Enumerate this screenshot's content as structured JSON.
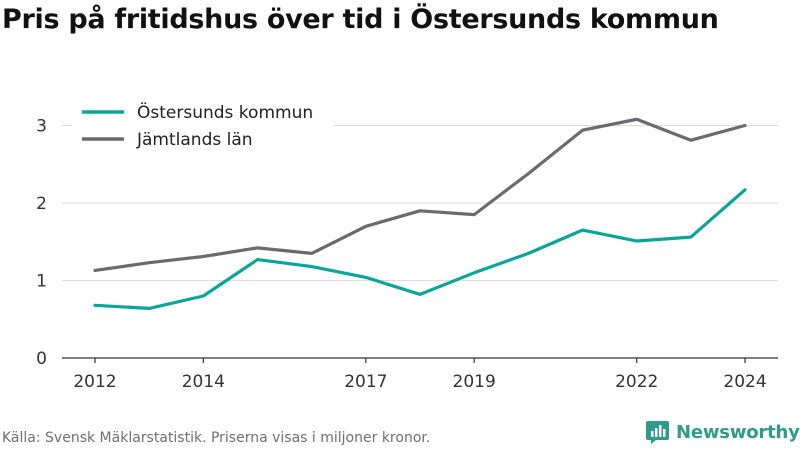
{
  "header": {
    "title": "Pris på fritidshus över tid i Östersunds kommun"
  },
  "footer": {
    "source": "Källa: Svensk Mäklarstatistik. Priserna visas i miljoner kronor.",
    "brand": "Newsworthy",
    "brand_icon": "newsworthy-logo-icon"
  },
  "colors": {
    "ostersund": "#0aa59a",
    "jamtland": "#6b6b6f",
    "grid": "#dddddd",
    "axis": "#333333",
    "brand": "#2d9c8a"
  },
  "chart_data": {
    "type": "line",
    "title": "Pris på fritidshus över tid i Östersunds kommun",
    "xlabel": "",
    "ylabel": "",
    "x": [
      2012,
      2013,
      2014,
      2015,
      2016,
      2017,
      2018,
      2019,
      2020,
      2021,
      2022,
      2023,
      2024
    ],
    "x_ticks": [
      "2012",
      "2014",
      "2017",
      "2019",
      "2022",
      "2024"
    ],
    "y_ticks": [
      0,
      1,
      2,
      3
    ],
    "ylim": [
      0,
      3.25
    ],
    "grid": true,
    "legend_position": "top-left",
    "series": [
      {
        "name": "Östersunds kommun",
        "color": "#0aa59a",
        "values": [
          0.68,
          0.64,
          0.8,
          1.27,
          1.18,
          1.04,
          0.82,
          1.1,
          1.35,
          1.65,
          1.51,
          1.56,
          2.17
        ]
      },
      {
        "name": "Jämtlands län",
        "color": "#6b6b6f",
        "values": [
          1.13,
          1.23,
          1.31,
          1.42,
          1.35,
          1.7,
          1.9,
          1.85,
          2.38,
          2.94,
          3.08,
          2.81,
          3.0
        ]
      }
    ]
  }
}
